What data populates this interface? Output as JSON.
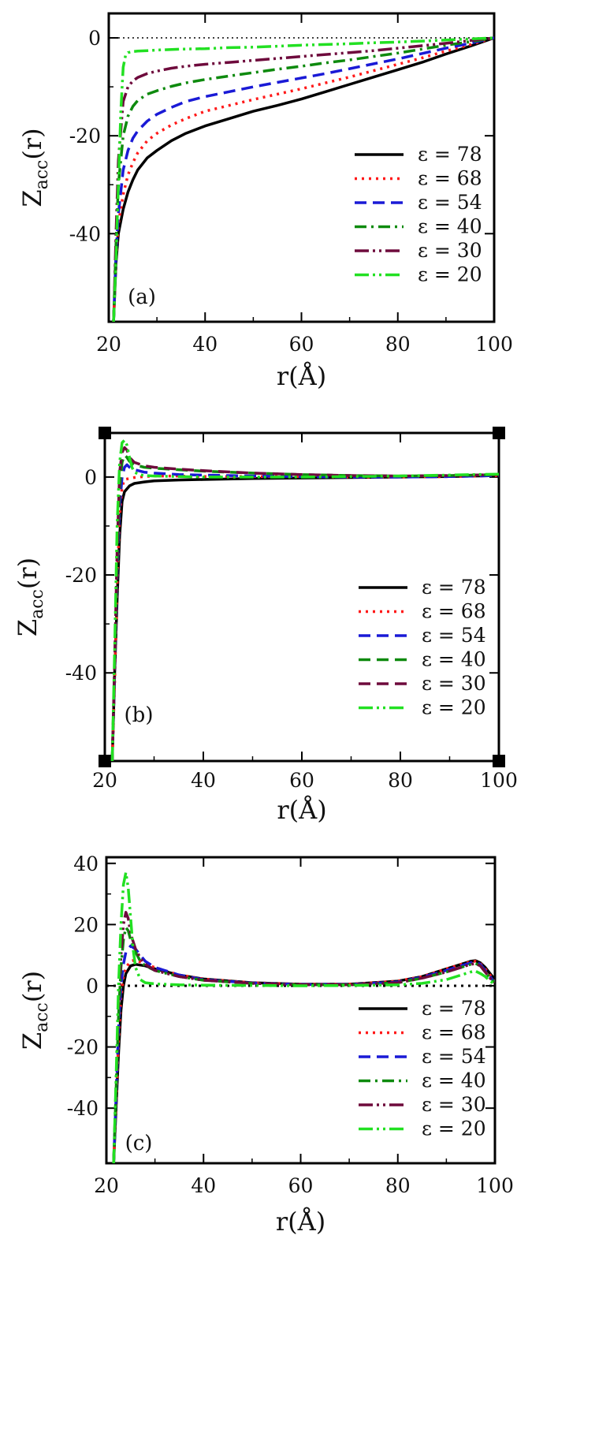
{
  "colors": {
    "eps78": "#000000",
    "eps68": "#ff1a1a",
    "eps54": "#1a1ad6",
    "eps40": "#0e8a0e",
    "eps30": "#6e0a3c",
    "eps20": "#22e022"
  },
  "chart_data": [
    {
      "type": "line",
      "panel_label": "(a)",
      "xlabel": "r(Å)",
      "ylabel_main": "Z",
      "ylabel_sub": "acc",
      "ylabel_suffix": "(r)",
      "xlim": [
        20,
        100
      ],
      "ylim": [
        -58,
        5
      ],
      "xticks": [
        20,
        40,
        60,
        80,
        100
      ],
      "yticks": [
        0,
        -20,
        -40
      ],
      "reference_line": {
        "y": 0,
        "style": "dotted"
      },
      "legend_placement": "right",
      "series": [
        {
          "name": "ε = 78",
          "style": "solid",
          "color": "eps78",
          "x": [
            21,
            21.5,
            22,
            23,
            24,
            25,
            26,
            28,
            30,
            33,
            36,
            40,
            45,
            50,
            55,
            60,
            65,
            70,
            75,
            80,
            85,
            90,
            95,
            100
          ],
          "y": [
            -58,
            -46,
            -40,
            -35,
            -31.5,
            -29,
            -27,
            -24.5,
            -23,
            -21,
            -19.5,
            -18,
            -16.5,
            -15,
            -13.8,
            -12.5,
            -11,
            -9.5,
            -8,
            -6.5,
            -5,
            -3.3,
            -1.7,
            0
          ]
        },
        {
          "name": "ε = 68",
          "style": "dotted",
          "color": "eps68",
          "x": [
            21,
            21.5,
            22,
            23,
            24,
            25,
            26,
            28,
            30,
            33,
            36,
            40,
            45,
            50,
            55,
            60,
            65,
            70,
            75,
            80,
            85,
            90,
            95,
            100
          ],
          "y": [
            -58,
            -45,
            -38,
            -32,
            -28,
            -25.5,
            -23.5,
            -21,
            -19.5,
            -17.8,
            -16.5,
            -15,
            -13.8,
            -12.6,
            -11.5,
            -10.4,
            -9.2,
            -8,
            -6.7,
            -5.4,
            -4.1,
            -2.7,
            -1.4,
            0
          ]
        },
        {
          "name": "ε = 54",
          "style": "dashed",
          "color": "eps54",
          "x": [
            21,
            21.5,
            22,
            23,
            24,
            25,
            26,
            28,
            30,
            33,
            36,
            40,
            45,
            50,
            55,
            60,
            65,
            70,
            75,
            80,
            85,
            90,
            95,
            100
          ],
          "y": [
            -58,
            -44,
            -36,
            -27,
            -23,
            -20.5,
            -19,
            -17,
            -15.6,
            -14.2,
            -13,
            -12,
            -11,
            -10,
            -9.1,
            -8.2,
            -7.3,
            -6.3,
            -5.3,
            -4.3,
            -3.2,
            -2.1,
            -1.1,
            0
          ]
        },
        {
          "name": "ε = 40",
          "style": "dashdot",
          "color": "eps40",
          "x": [
            21,
            21.5,
            22,
            23,
            24,
            25,
            26,
            28,
            30,
            33,
            36,
            40,
            45,
            50,
            55,
            60,
            65,
            70,
            75,
            80,
            85,
            90,
            95,
            100
          ],
          "y": [
            -58,
            -42,
            -30,
            -20,
            -16,
            -14,
            -12.8,
            -11.5,
            -10.8,
            -9.9,
            -9.2,
            -8.5,
            -7.8,
            -7.1,
            -6.4,
            -5.8,
            -5.1,
            -4.5,
            -3.8,
            -3.1,
            -2.3,
            -1.5,
            -0.8,
            0
          ]
        },
        {
          "name": "ε = 30",
          "style": "dashdotdot",
          "color": "eps30",
          "x": [
            21,
            21.5,
            22,
            23,
            24,
            25,
            26,
            28,
            30,
            33,
            36,
            40,
            45,
            50,
            55,
            60,
            65,
            70,
            75,
            80,
            85,
            90,
            95,
            100
          ],
          "y": [
            -58,
            -40,
            -25,
            -13,
            -10,
            -8.8,
            -8.1,
            -7.3,
            -6.8,
            -6.2,
            -5.8,
            -5.4,
            -5,
            -4.6,
            -4.2,
            -3.8,
            -3.4,
            -3,
            -2.6,
            -2.1,
            -1.6,
            -1.1,
            -0.55,
            0
          ]
        },
        {
          "name": "ε = 20",
          "style": "dashdotdot",
          "color": "eps20",
          "x": [
            21,
            21.5,
            22,
            22.5,
            23,
            23.5,
            24,
            25,
            26,
            28,
            30,
            35,
            40,
            45,
            50,
            55,
            60,
            65,
            70,
            75,
            80,
            85,
            90,
            95,
            100
          ],
          "y": [
            -58,
            -45,
            -30,
            -15,
            -6,
            -3.5,
            -3,
            -2.8,
            -2.7,
            -2.6,
            -2.5,
            -2.3,
            -2.2,
            -2,
            -1.9,
            -1.7,
            -1.5,
            -1.35,
            -1.2,
            -1,
            -0.85,
            -0.65,
            -0.45,
            -0.22,
            0
          ]
        }
      ]
    },
    {
      "type": "line",
      "panel_label": "(b)",
      "xlabel": "r(Å)",
      "ylabel_main": "Z",
      "ylabel_sub": "acc",
      "ylabel_suffix": "(r)",
      "xlim": [
        20,
        100
      ],
      "ylim": [
        -58,
        9
      ],
      "xticks": [
        20,
        40,
        60,
        80,
        100
      ],
      "yticks": [
        0,
        -20,
        -40
      ],
      "reference_line": null,
      "legend_placement": "right",
      "series": [
        {
          "name": "ε = 78",
          "style": "solid",
          "color": "eps78",
          "x": [
            21.5,
            22,
            22.5,
            23,
            23.5,
            24,
            25,
            26,
            28,
            30,
            35,
            40,
            50,
            60,
            70,
            80,
            90,
            100
          ],
          "y": [
            -58,
            -40,
            -25,
            -12,
            -5,
            -3,
            -1.8,
            -1.3,
            -1,
            -0.8,
            -0.6,
            -0.5,
            -0.3,
            -0.2,
            -0.1,
            0,
            0.1,
            0.3
          ]
        },
        {
          "name": "ε = 68",
          "style": "dotted",
          "color": "eps68",
          "x": [
            21.5,
            22,
            22.5,
            23,
            23.5,
            24,
            25,
            26,
            28,
            30,
            35,
            40,
            50,
            60,
            70,
            80,
            90,
            100
          ],
          "y": [
            -58,
            -42,
            -22,
            -8,
            -2,
            -0.5,
            -0.3,
            -0.1,
            0.1,
            0.2,
            0.2,
            0.1,
            0.1,
            0.1,
            0,
            0,
            0.1,
            0.3
          ]
        },
        {
          "name": "ε = 54",
          "style": "dashed",
          "color": "eps54",
          "x": [
            21.5,
            22,
            22.5,
            23,
            23.5,
            24,
            24.5,
            25,
            26,
            28,
            30,
            35,
            40,
            50,
            60,
            70,
            80,
            90,
            100
          ],
          "y": [
            -58,
            -40,
            -20,
            -6,
            0,
            2,
            2.5,
            2,
            1.5,
            1,
            0.8,
            0.5,
            0.4,
            0.2,
            0.1,
            0,
            0,
            0.1,
            0.3
          ]
        },
        {
          "name": "ε = 40",
          "style": "dashed",
          "color": "eps40",
          "x": [
            21.5,
            22,
            22.5,
            23,
            23.5,
            24,
            24.5,
            25,
            26,
            28,
            30,
            35,
            40,
            50,
            60,
            70,
            80,
            90,
            100
          ],
          "y": [
            -58,
            -38,
            -18,
            -2,
            3,
            4.5,
            4,
            3.2,
            2.5,
            2,
            1.8,
            1.5,
            1.2,
            0.8,
            0.5,
            0.3,
            0.2,
            0.3,
            0.5
          ]
        },
        {
          "name": "ε = 30",
          "style": "dashed",
          "color": "eps30",
          "x": [
            21.5,
            22,
            22.5,
            23,
            23.5,
            24,
            24.5,
            25,
            26,
            28,
            30,
            35,
            40,
            50,
            60,
            70,
            80,
            90,
            100
          ],
          "y": [
            -58,
            -38,
            -15,
            1,
            5,
            6,
            5.5,
            4,
            3,
            2.3,
            2,
            1.6,
            1.3,
            0.8,
            0.5,
            0.3,
            0.2,
            0.3,
            0.5
          ]
        },
        {
          "name": "ε = 20",
          "style": "dashdotdot",
          "color": "eps20",
          "x": [
            21.5,
            22,
            22.5,
            23,
            23.5,
            24,
            24.5,
            25,
            25.5,
            26,
            27,
            28,
            30,
            35,
            40,
            50,
            60,
            70,
            80,
            90,
            100
          ],
          "y": [
            -58,
            -35,
            -10,
            3,
            7,
            7.5,
            6.5,
            4,
            2,
            1,
            0.5,
            0.3,
            0.2,
            0.1,
            0,
            0,
            0,
            0.1,
            0.2,
            0.4,
            0.6
          ]
        }
      ]
    },
    {
      "type": "line",
      "panel_label": "(c)",
      "xlabel": "r(Å)",
      "ylabel_main": "Z",
      "ylabel_sub": "acc",
      "ylabel_suffix": "(r)",
      "xlim": [
        20,
        100
      ],
      "ylim": [
        -58,
        42
      ],
      "xticks": [
        20,
        40,
        60,
        80,
        100
      ],
      "yticks": [
        40,
        20,
        0,
        -20,
        -40
      ],
      "reference_line": {
        "y": 0,
        "style": "dotted-bold"
      },
      "legend_placement": "right",
      "series": [
        {
          "name": "ε = 78",
          "style": "solid",
          "color": "eps78",
          "x": [
            21.5,
            22,
            22.5,
            23,
            23.5,
            24,
            25,
            26,
            28,
            30,
            35,
            40,
            50,
            60,
            70,
            80,
            85,
            90,
            93,
            95,
            96,
            97,
            98,
            99,
            100
          ],
          "y": [
            -58,
            -40,
            -22,
            -8,
            0,
            4,
            6.5,
            7,
            6.5,
            5.5,
            3.5,
            2.2,
            1,
            0.5,
            0.5,
            1.5,
            3,
            5.5,
            7,
            8,
            8.2,
            7.5,
            6,
            4,
            2
          ]
        },
        {
          "name": "ε = 68",
          "style": "dotted",
          "color": "eps68",
          "x": [
            21.5,
            22,
            22.5,
            23,
            23.5,
            24,
            25,
            26,
            28,
            30,
            35,
            40,
            50,
            60,
            70,
            80,
            85,
            90,
            93,
            95,
            96,
            97,
            98,
            99,
            100
          ],
          "y": [
            -58,
            -38,
            -18,
            -4,
            3,
            6,
            8,
            8.5,
            7,
            6,
            3.5,
            2.2,
            1,
            0.5,
            0.5,
            1.5,
            3,
            5.5,
            7,
            7.8,
            8,
            7.2,
            5.5,
            3.5,
            1.5
          ]
        },
        {
          "name": "ε = 54",
          "style": "dashed",
          "color": "eps54",
          "x": [
            21.5,
            22,
            22.5,
            23,
            23.5,
            24,
            25,
            26,
            27,
            28,
            30,
            35,
            40,
            50,
            60,
            70,
            80,
            85,
            90,
            93,
            95,
            96,
            97,
            98,
            99,
            100
          ],
          "y": [
            -58,
            -36,
            -14,
            0,
            7,
            11,
            13,
            12,
            10,
            8,
            6,
            3.5,
            2,
            0.9,
            0.4,
            0.4,
            1.2,
            2.8,
            5,
            6.5,
            7.5,
            7.8,
            7,
            5,
            3,
            1
          ]
        },
        {
          "name": "ε = 40",
          "style": "dashdot",
          "color": "eps40",
          "x": [
            21.5,
            22,
            22.5,
            23,
            23.5,
            24,
            24.5,
            25,
            26,
            27,
            28,
            30,
            35,
            40,
            50,
            60,
            70,
            80,
            85,
            90,
            93,
            95,
            96,
            97,
            98,
            99,
            100
          ],
          "y": [
            -58,
            -34,
            -10,
            6,
            15,
            19,
            18,
            15,
            11,
            8,
            6.5,
            5,
            3,
            1.8,
            0.8,
            0.3,
            0.3,
            1,
            2.5,
            4.5,
            6,
            7,
            7.3,
            6.5,
            4.5,
            2.5,
            1
          ]
        },
        {
          "name": "ε = 30",
          "style": "dashdotdot",
          "color": "eps30",
          "x": [
            21.5,
            22,
            22.5,
            23,
            23.5,
            24,
            24.5,
            25,
            26,
            27,
            28,
            30,
            35,
            40,
            50,
            60,
            70,
            80,
            85,
            90,
            93,
            95,
            96,
            97,
            98,
            99,
            100
          ],
          "y": [
            -58,
            -32,
            -6,
            10,
            20,
            24,
            22,
            17,
            12,
            9,
            7,
            5,
            3,
            1.8,
            0.8,
            0.3,
            0.3,
            1,
            2.5,
            4.5,
            6,
            7,
            7.2,
            6.5,
            4.5,
            2.5,
            1
          ]
        },
        {
          "name": "ε = 20",
          "style": "dashdotdot",
          "color": "eps20",
          "x": [
            21.5,
            22,
            22.5,
            23,
            23.5,
            24,
            24.5,
            25,
            25.5,
            26,
            27,
            28,
            30,
            35,
            40,
            50,
            60,
            70,
            80,
            85,
            90,
            93,
            95,
            96,
            97,
            98,
            99,
            100
          ],
          "y": [
            -58,
            -30,
            0,
            20,
            33,
            37,
            32,
            22,
            12,
            6,
            2,
            1,
            0.6,
            0.3,
            0.2,
            0.1,
            0,
            0.1,
            0.3,
            0.8,
            2,
            3.5,
            4.5,
            4.8,
            4,
            3,
            1.5,
            0.5
          ]
        }
      ]
    }
  ]
}
